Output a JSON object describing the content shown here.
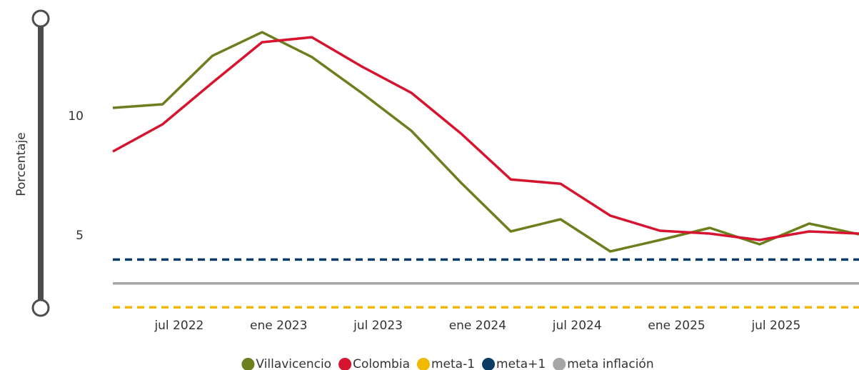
{
  "chart_data": {
    "type": "line",
    "y_label": "Porcentaje",
    "x": [
      "2022-03",
      "2022-06",
      "2022-09",
      "2022-12",
      "2023-03",
      "2023-06",
      "2023-09",
      "2023-12",
      "2024-03",
      "2024-06",
      "2024-09",
      "2024-12",
      "2025-03",
      "2025-06",
      "2025-09",
      "2025-12"
    ],
    "xlim": [
      "2022-03",
      "2025-12"
    ],
    "xticks": [
      {
        "value": "2022-07",
        "label": "jul 2022"
      },
      {
        "value": "2023-01",
        "label": "ene 2023"
      },
      {
        "value": "2023-07",
        "label": "jul 2023"
      },
      {
        "value": "2024-01",
        "label": "ene 2024"
      },
      {
        "value": "2024-07",
        "label": "jul 2024"
      },
      {
        "value": "2025-01",
        "label": "ene 2025"
      },
      {
        "value": "2025-07",
        "label": "jul 2025"
      }
    ],
    "ylim": [
      2,
      14
    ],
    "yticks": [
      5,
      10
    ],
    "grid": false,
    "legend": "bottom",
    "series": [
      {
        "name": "Villavicencio",
        "color": "#6b7f1f",
        "dashed": false,
        "values": [
          10.36,
          10.51,
          12.54,
          13.53,
          12.49,
          10.99,
          9.4,
          7.22,
          5.18,
          5.69,
          4.34,
          4.82,
          5.33,
          4.64,
          5.51,
          5.06
        ]
      },
      {
        "name": "Colombia",
        "color": "#d7142f",
        "dashed": false,
        "values": [
          8.53,
          9.67,
          11.41,
          13.11,
          13.32,
          12.1,
          10.99,
          9.28,
          7.36,
          7.18,
          5.84,
          5.21,
          5.09,
          4.82,
          5.18,
          5.09
        ]
      },
      {
        "name": "meta-1",
        "color": "#f0b800",
        "dashed": true,
        "values": [
          2,
          2,
          2,
          2,
          2,
          2,
          2,
          2,
          2,
          2,
          2,
          2,
          2,
          2,
          2,
          2
        ]
      },
      {
        "name": "meta+1",
        "color": "#0c3c66",
        "dashed": true,
        "values": [
          4,
          4,
          4,
          4,
          4,
          4,
          4,
          4,
          4,
          4,
          4,
          4,
          4,
          4,
          4,
          4
        ]
      },
      {
        "name": "meta inflación",
        "color": "#a6a6a6",
        "dashed": false,
        "values": [
          3,
          3,
          3,
          3,
          3,
          3,
          3,
          3,
          3,
          3,
          3,
          3,
          3,
          3,
          3,
          3
        ]
      }
    ]
  }
}
